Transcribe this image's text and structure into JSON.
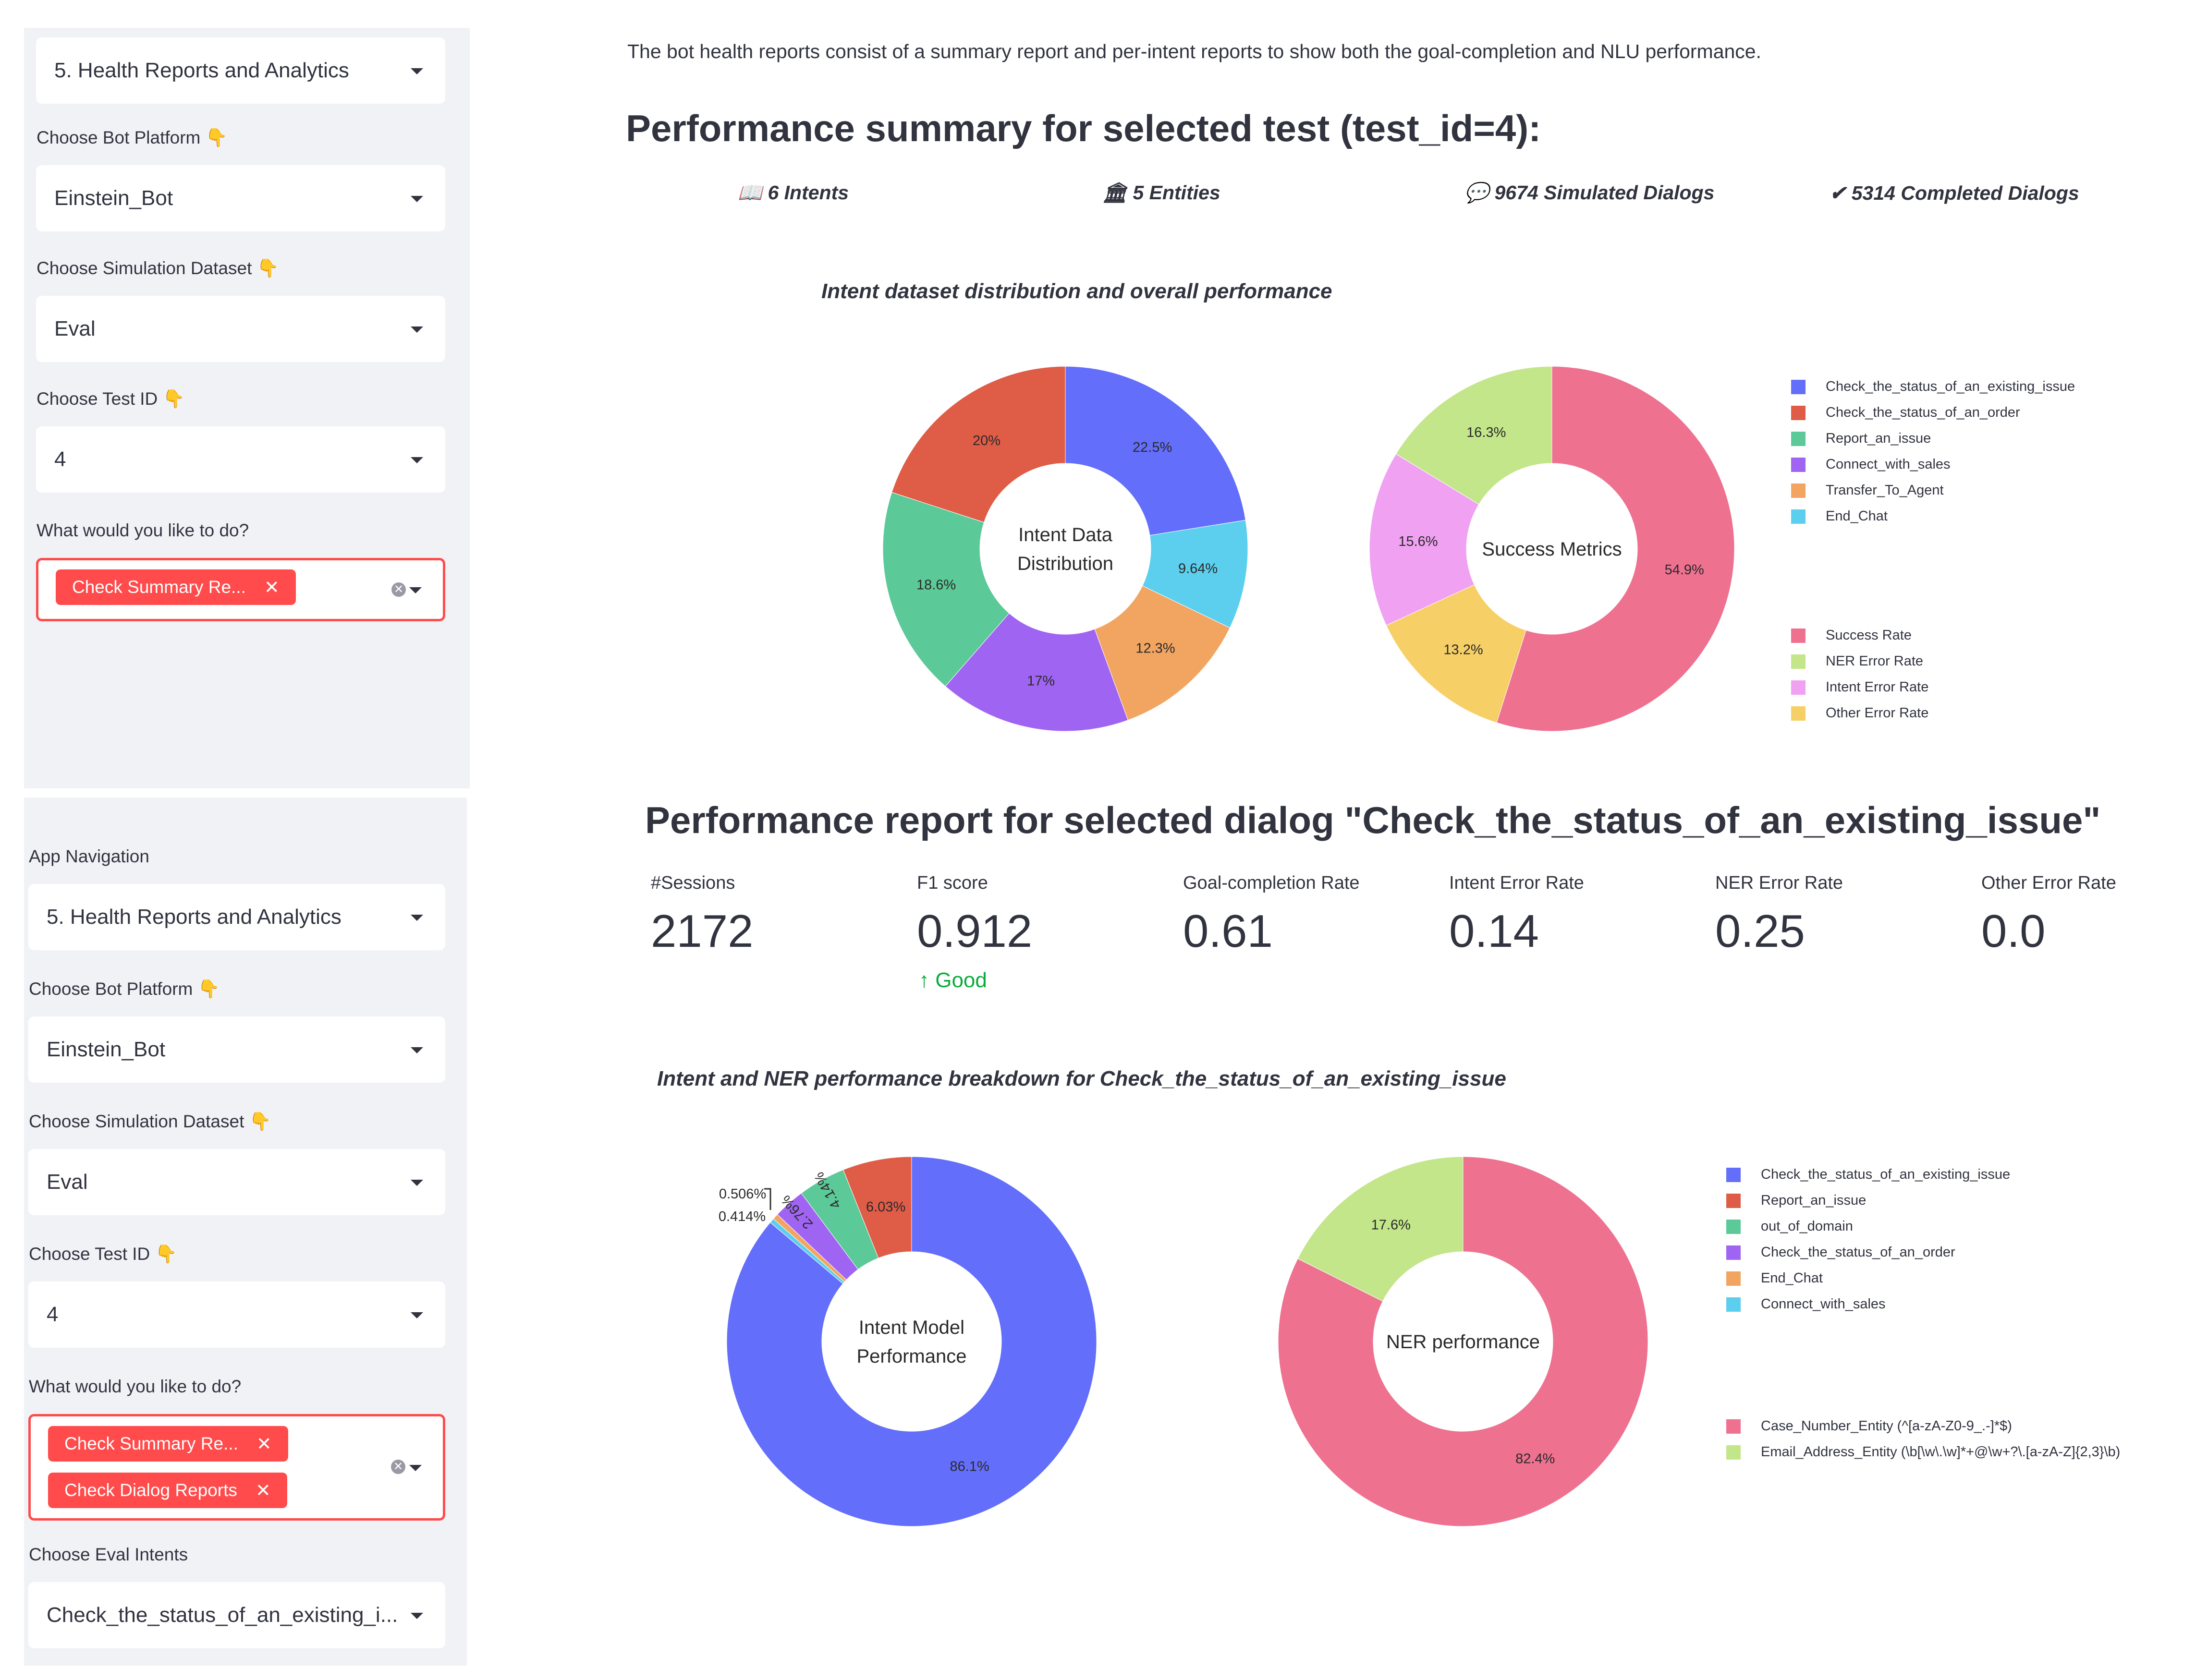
{
  "sidebar_top": {
    "page_select": "5. Health Reports and Analytics",
    "bot_platform": {
      "label": "Choose Bot Platform 👇",
      "value": "Einstein_Bot"
    },
    "dataset": {
      "label": "Choose Simulation Dataset 👇",
      "value": "Eval"
    },
    "test_id": {
      "label": "Choose Test ID 👇",
      "value": "4"
    },
    "action": {
      "label": "What would you like to do?",
      "tags": [
        "Check Summary Re..."
      ]
    }
  },
  "sidebar_bottom": {
    "nav_label": "App Navigation",
    "page_select": "5. Health Reports and Analytics",
    "bot_platform": {
      "label": "Choose Bot Platform 👇",
      "value": "Einstein_Bot"
    },
    "dataset": {
      "label": "Choose Simulation Dataset 👇",
      "value": "Eval"
    },
    "test_id": {
      "label": "Choose Test ID 👇",
      "value": "4"
    },
    "action": {
      "label": "What would you like to do?",
      "tags": [
        "Check Summary Re...",
        "Check Dialog Reports"
      ]
    },
    "eval_intents": {
      "label": "Choose Eval Intents",
      "value": "Check_the_status_of_an_existing_i..."
    }
  },
  "main": {
    "intro": "The bot health reports consist of a summary report and per-intent reports to show both the goal-completion and NLU performance.",
    "summary_title": "Performance summary for selected test (test_id=4):",
    "stats": {
      "intents": "📖 6 Intents",
      "entities": "🏛 5 Entities",
      "simulated": "💬 9674 Simulated Dialogs",
      "completed": "✔ 5314 Completed Dialogs"
    },
    "chart1_title": "Intent dataset distribution and overall performance",
    "dialog_title": "Performance report for selected dialog \"Check_the_status_of_an_existing_issue\"",
    "metrics": [
      {
        "label": "#Sessions",
        "value": "2172",
        "delta": ""
      },
      {
        "label": "F1 score",
        "value": "0.912",
        "delta": "↑ Good"
      },
      {
        "label": "Goal-completion Rate",
        "value": "0.61",
        "delta": ""
      },
      {
        "label": "Intent Error Rate",
        "value": "0.14",
        "delta": ""
      },
      {
        "label": "NER Error Rate",
        "value": "0.25",
        "delta": ""
      },
      {
        "label": "Other Error Rate",
        "value": "0.0",
        "delta": ""
      }
    ],
    "chart2_title": "Intent and NER performance breakdown for Check_the_status_of_an_existing_issue"
  },
  "colors": {
    "blue": "#636efa",
    "red": "#ef553b",
    "green": "#00cc96",
    "purple": "#ab63fa",
    "orange": "#ffa15a",
    "cyan": "#19d3f3",
    "pink": "#ef6f91",
    "lime": "#c3e68a",
    "violet": "#f0a1f2",
    "yellow": "#f7d16b",
    "accent": "#ff4b4b"
  },
  "chart_data": [
    {
      "type": "pie",
      "center_label": [
        "Intent Data",
        "Distribution"
      ],
      "categories": [
        "Check_the_status_of_an_existing_issue",
        "End_Chat",
        "Transfer_To_Agent",
        "Connect_with_sales",
        "Report_an_issue",
        "Check_the_status_of_an_order"
      ],
      "values": [
        22.5,
        9.64,
        12.3,
        17,
        18.6,
        20
      ],
      "labels": [
        "22.5%",
        "9.64%",
        "12.3%",
        "17%",
        "18.6%",
        "20%"
      ],
      "colors": [
        "#636efa",
        "#5ccfee",
        "#f2a561",
        "#a064f2",
        "#5cc998",
        "#df5c47"
      ]
    },
    {
      "type": "pie",
      "center_label": [
        "Success Metrics"
      ],
      "categories": [
        "Success Rate",
        "Other Error Rate",
        "Intent Error Rate",
        "NER Error Rate"
      ],
      "values": [
        54.9,
        13.2,
        15.6,
        16.3
      ],
      "labels": [
        "54.9%",
        "13.2%",
        "15.6%",
        "16.3%"
      ],
      "colors": [
        "#ee7190",
        "#f6cf66",
        "#f0a1f2",
        "#c3e68a"
      ]
    },
    {
      "type": "pie",
      "center_label": [
        "Intent Model",
        "Performance"
      ],
      "categories": [
        "Check_the_status_of_an_existing_issue",
        "Connect_with_sales",
        "End_Chat",
        "Check_the_status_of_an_order",
        "out_of_domain",
        "Report_an_issue"
      ],
      "values": [
        86.1,
        0.414,
        0.506,
        2.76,
        4.14,
        6.03
      ],
      "labels": [
        "86.1%",
        "0.414%",
        "0.506%",
        "2.76%",
        "4.14%",
        "6.03%"
      ],
      "colors": [
        "#636efa",
        "#5ccfee",
        "#f2a561",
        "#a064f2",
        "#5cc998",
        "#df5c47"
      ]
    },
    {
      "type": "pie",
      "center_label": [
        "NER performance"
      ],
      "categories": [
        "Case_Number_Entity (^[a-zA-Z0-9_.-]*$)",
        "Email_Address_Entity (\\b[\\w\\.\\w]*+@\\w+?\\.[a-zA-Z]{2,3}\\b)"
      ],
      "values": [
        82.4,
        17.6
      ],
      "labels": [
        "82.4%",
        "17.6%"
      ],
      "colors": [
        "#ee7190",
        "#c3e68a"
      ]
    }
  ],
  "legends": {
    "intent": [
      {
        "label": "Check_the_status_of_an_existing_issue",
        "color": "#636efa"
      },
      {
        "label": "Check_the_status_of_an_order",
        "color": "#df5c47"
      },
      {
        "label": "Report_an_issue",
        "color": "#5cc998"
      },
      {
        "label": "Connect_with_sales",
        "color": "#a064f2"
      },
      {
        "label": "Transfer_To_Agent",
        "color": "#f2a561"
      },
      {
        "label": "End_Chat",
        "color": "#5ccfee"
      }
    ],
    "success": [
      {
        "label": "Success Rate",
        "color": "#ee7190"
      },
      {
        "label": "NER Error Rate",
        "color": "#c3e68a"
      },
      {
        "label": "Intent Error Rate",
        "color": "#f0a1f2"
      },
      {
        "label": "Other Error Rate",
        "color": "#f6cf66"
      }
    ],
    "breakdown": [
      {
        "label": "Check_the_status_of_an_existing_issue",
        "color": "#636efa"
      },
      {
        "label": "Report_an_issue",
        "color": "#df5c47"
      },
      {
        "label": "out_of_domain",
        "color": "#5cc998"
      },
      {
        "label": "Check_the_status_of_an_order",
        "color": "#a064f2"
      },
      {
        "label": "End_Chat",
        "color": "#f2a561"
      },
      {
        "label": "Connect_with_sales",
        "color": "#5ccfee"
      }
    ],
    "ner": [
      {
        "label": "Case_Number_Entity (^[a-zA-Z0-9_.-]*$)",
        "color": "#ee7190"
      },
      {
        "label": "Email_Address_Entity (\\b[\\w\\.\\w]*+@\\w+?\\.[a-zA-Z]{2,3}\\b)",
        "color": "#c3e68a"
      }
    ]
  }
}
